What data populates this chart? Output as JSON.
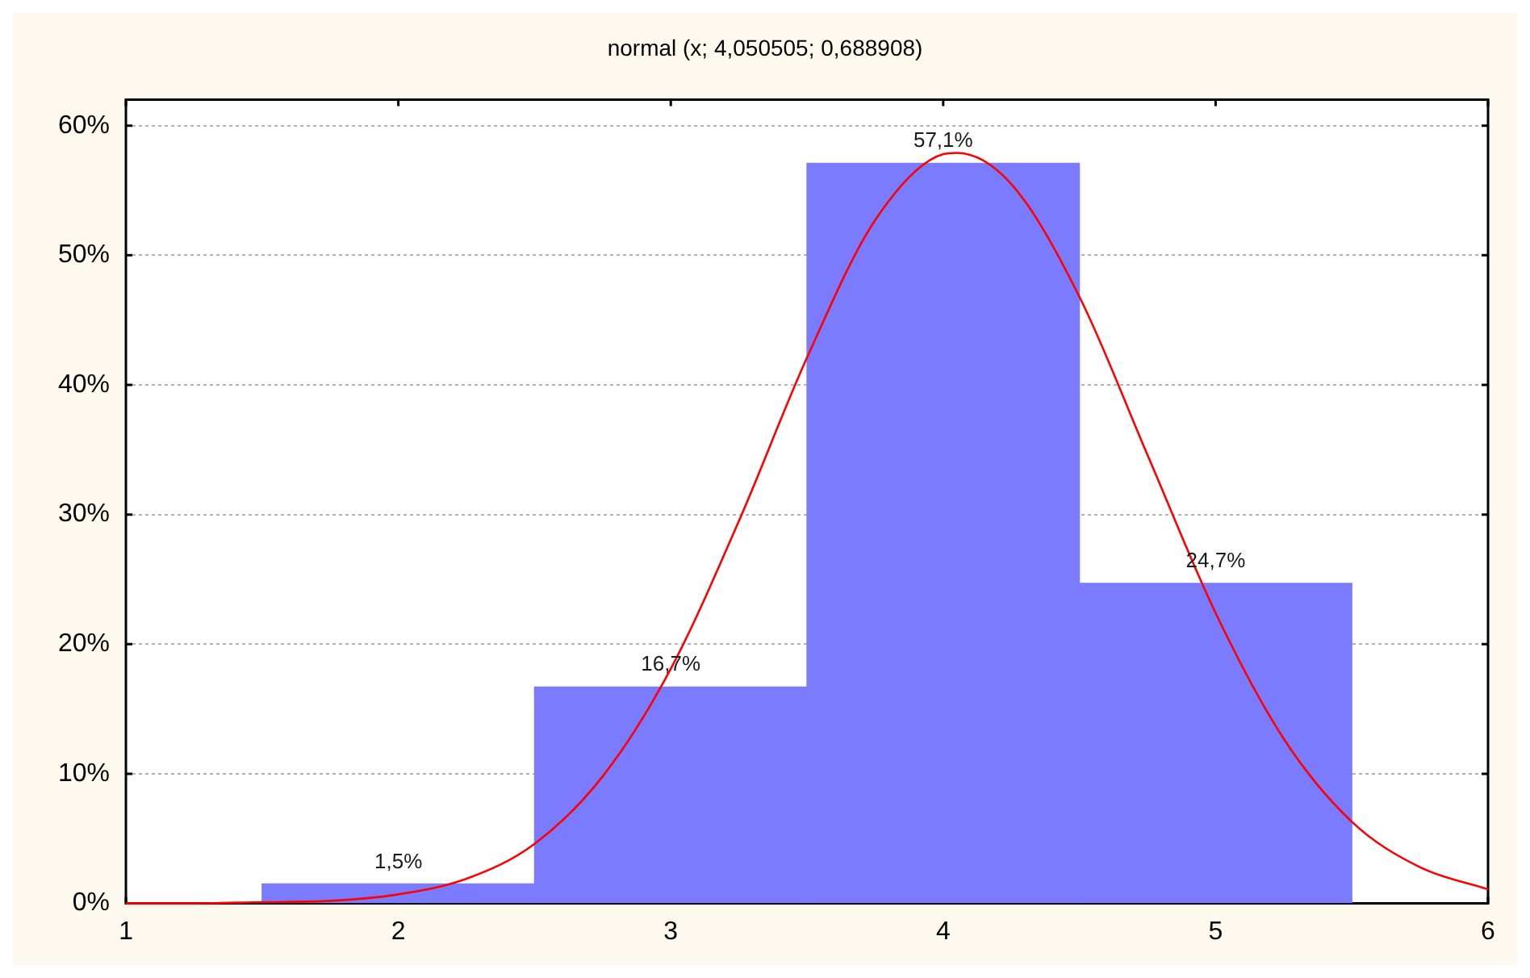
{
  "chart_data": {
    "type": "histogram",
    "title": "normal (x; 4,050505; 0,688908)",
    "xlim": [
      1,
      6
    ],
    "xticks": [
      1,
      2,
      3,
      4,
      5,
      6
    ],
    "ylim": [
      0,
      62
    ],
    "yticks": [
      {
        "value": 0,
        "label": "0%"
      },
      {
        "value": 10,
        "label": "10%"
      },
      {
        "value": 20,
        "label": "20%"
      },
      {
        "value": 30,
        "label": "30%"
      },
      {
        "value": 40,
        "label": "40%"
      },
      {
        "value": 50,
        "label": "50%"
      },
      {
        "value": 60,
        "label": "60%"
      }
    ],
    "grid": "y",
    "series": [
      {
        "bins": [
          1.5,
          2.5,
          3.5,
          4.5,
          5.5
        ],
        "values": [
          1.5,
          16.7,
          57.1,
          24.7
        ],
        "color": "#7b7bff",
        "value_labels": [
          "1,5%",
          "16,7%",
          "57,1%",
          "24,7%"
        ]
      },
      {
        "type": "line",
        "x": [
          1,
          1.25,
          1.5,
          1.75,
          2,
          2.25,
          2.5,
          2.75,
          3,
          3.25,
          3.5,
          3.75,
          4,
          4.05,
          4.25,
          4.5,
          4.75,
          5,
          5.25,
          5.5,
          5.75,
          6
        ],
        "values": [
          0,
          0,
          0.1,
          0.2,
          0.7,
          1.9,
          4.6,
          9.8,
          18.1,
          29.5,
          42.1,
          52.7,
          57.8,
          57.9,
          55.5,
          46.8,
          34.6,
          22.4,
          12.7,
          6.3,
          2.8,
          1.1
        ],
        "color": "#ff0000"
      }
    ]
  }
}
